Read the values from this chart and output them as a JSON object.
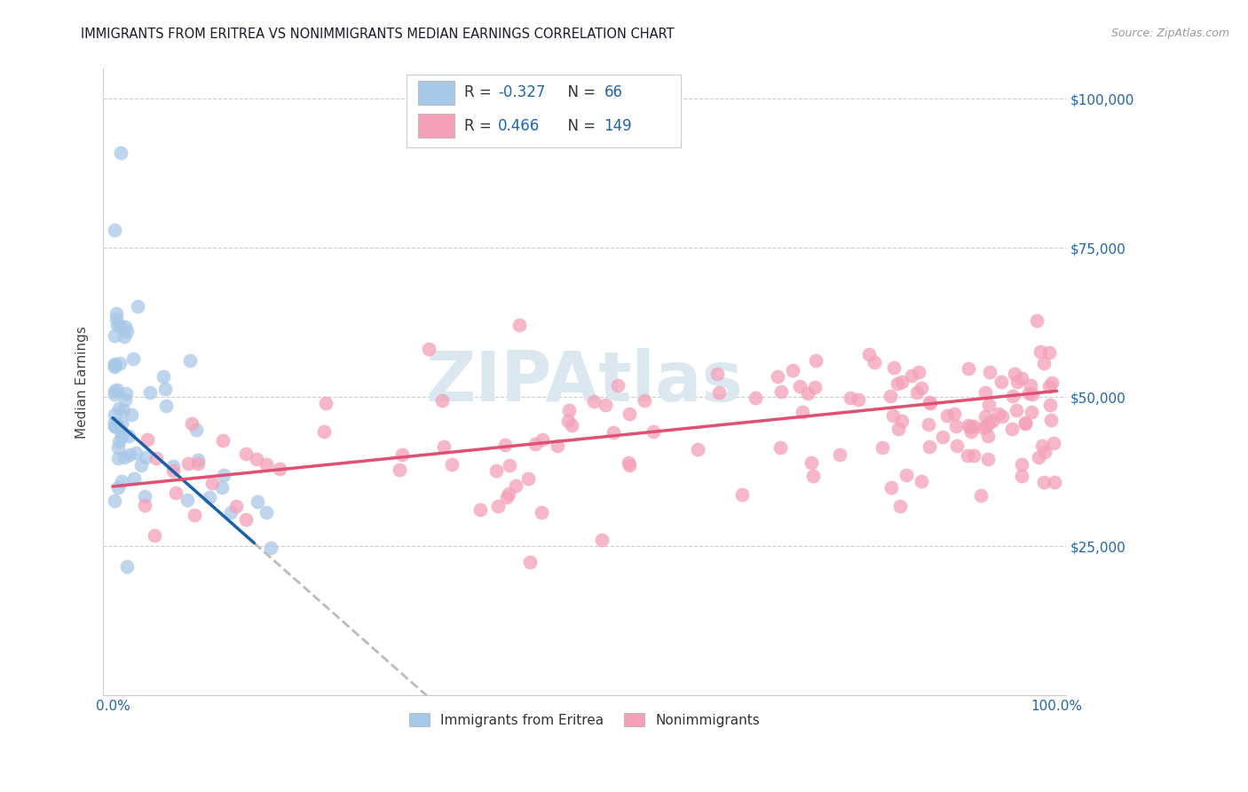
{
  "title": "IMMIGRANTS FROM ERITREA VS NONIMMIGRANTS MEDIAN EARNINGS CORRELATION CHART",
  "source": "Source: ZipAtlas.com",
  "ylabel": "Median Earnings",
  "legend_labels": [
    "Immigrants from Eritrea",
    "Nonimmigrants"
  ],
  "R_blue": -0.327,
  "N_blue": 66,
  "R_pink": 0.466,
  "N_pink": 149,
  "blue_color": "#a8c8e8",
  "pink_color": "#f4a0b8",
  "blue_line_color": "#1a5fa8",
  "pink_line_color": "#e05070",
  "watermark_color": "#dce8f0",
  "title_color": "#1a1a2e",
  "axis_color": "#2166ac",
  "source_color": "#999999",
  "grid_color": "#cccccc",
  "ylim_min": 0,
  "ylim_max": 105000,
  "xlim_min": -1,
  "xlim_max": 101,
  "blue_line_x_start": 0.0,
  "blue_line_x_solid_end": 15.0,
  "blue_line_x_dashed_end": 38.0,
  "blue_line_y_at_0": 46500,
  "blue_line_slope": -1400,
  "pink_line_y_at_0": 35000,
  "pink_line_y_at_100": 51000
}
